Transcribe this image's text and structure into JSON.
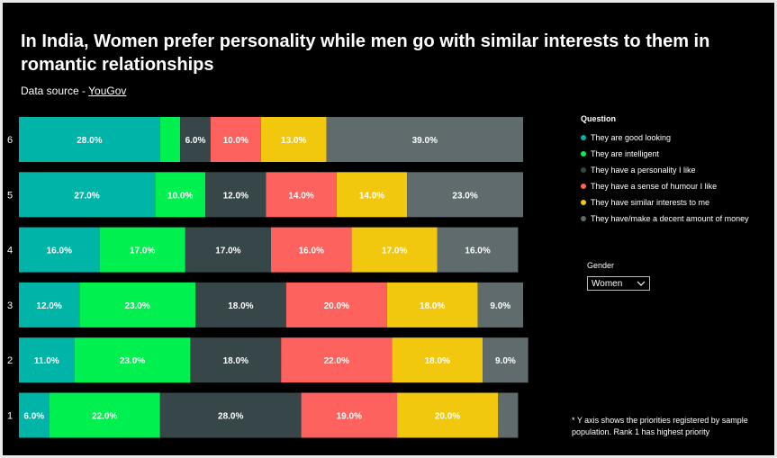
{
  "title": "In India, Women prefer personality while men go with similar interests to them in romantic relationships",
  "source": {
    "prefix": "Data source - ",
    "link_text": "YouGov"
  },
  "legend": {
    "title": "Question",
    "items": [
      {
        "label": "They are good looking",
        "color": "#00b4a8"
      },
      {
        "label": "They are intelligent",
        "color": "#00f050"
      },
      {
        "label": "They have a personality I like",
        "color": "#374649"
      },
      {
        "label": "They have a sense of humour I like",
        "color": "#fd625e"
      },
      {
        "label": "They have similar interests to me",
        "color": "#f2c80f"
      },
      {
        "label": "They have/make a decent amount of money",
        "color": "#5f6b6d"
      }
    ]
  },
  "slicer": {
    "title": "Gender",
    "value": "Women"
  },
  "footnote": "* Y axis shows the priorities registered by sample population. Rank 1 has highest priority",
  "chart_data": {
    "type": "bar",
    "orientation": "horizontal",
    "stacked": true,
    "categories": [
      "6",
      "5",
      "4",
      "3",
      "2",
      "1"
    ],
    "series": [
      {
        "name": "They are good looking",
        "values": [
          28,
          27,
          16,
          12,
          11,
          6
        ]
      },
      {
        "name": "They are intelligent",
        "values": [
          4,
          10,
          17,
          23,
          23,
          22
        ]
      },
      {
        "name": "They have a personality I like",
        "values": [
          6,
          12,
          17,
          18,
          18,
          28
        ]
      },
      {
        "name": "They have a sense of humour I like",
        "values": [
          10,
          14,
          16,
          20,
          22,
          19
        ]
      },
      {
        "name": "They have similar interests to me",
        "values": [
          13,
          14,
          17,
          18,
          18,
          20
        ]
      },
      {
        "name": "They have/make a decent amount of money",
        "values": [
          39,
          23,
          16,
          9,
          9,
          4
        ]
      }
    ],
    "data_labels": [
      [
        "28.0%",
        "",
        "6.0%",
        "10.0%",
        "13.0%",
        "39.0%"
      ],
      [
        "27.0%",
        "10.0%",
        "12.0%",
        "14.0%",
        "14.0%",
        "23.0%"
      ],
      [
        "16.0%",
        "17.0%",
        "17.0%",
        "16.0%",
        "17.0%",
        "16.0%"
      ],
      [
        "12.0%",
        "23.0%",
        "18.0%",
        "20.0%",
        "18.0%",
        "9.0%"
      ],
      [
        "11.0%",
        "23.0%",
        "18.0%",
        "22.0%",
        "18.0%",
        "9.0%"
      ],
      [
        "6.0%",
        "22.0%",
        "28.0%",
        "19.0%",
        "20.0%",
        ""
      ]
    ],
    "legend_position": "right",
    "grid": false
  }
}
